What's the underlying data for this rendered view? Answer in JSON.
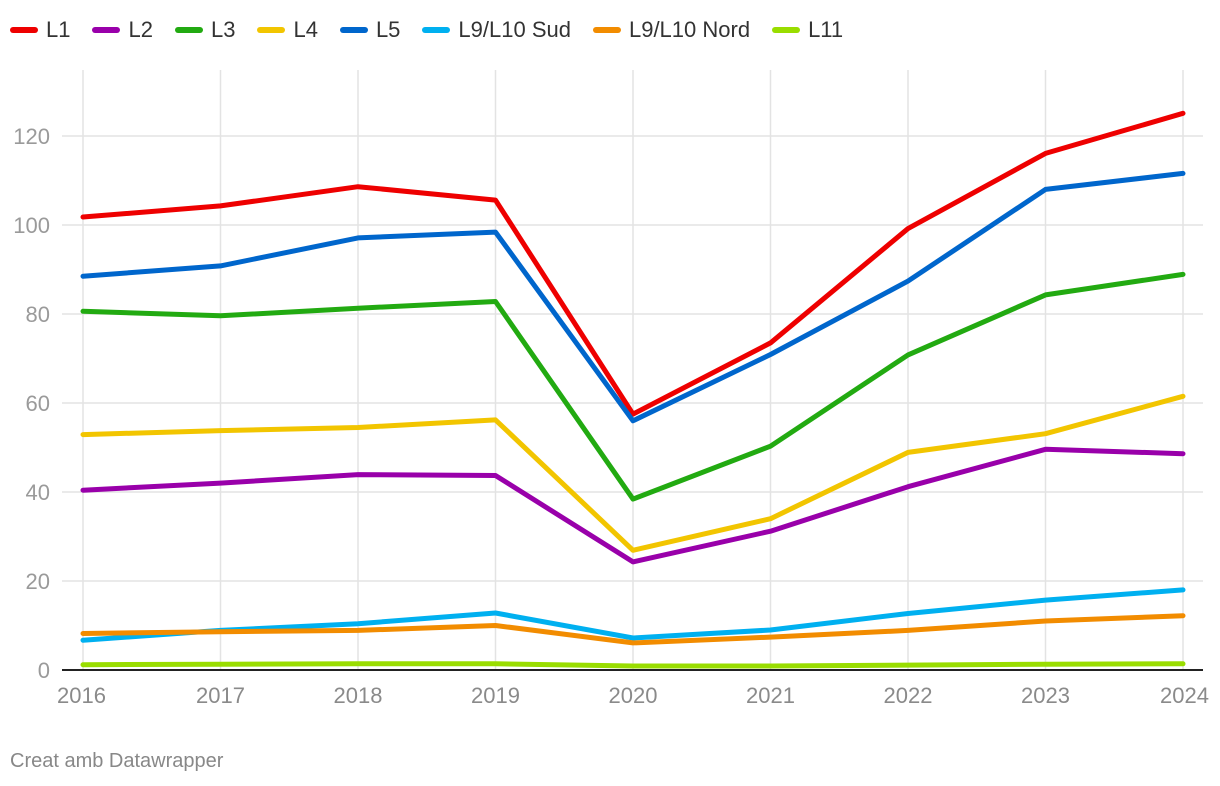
{
  "chart_data": {
    "type": "line",
    "title": "",
    "xlabel": "",
    "ylabel": "",
    "categories": [
      "2016",
      "2017",
      "2018",
      "2019",
      "2020",
      "2021",
      "2022",
      "2023",
      "2024"
    ],
    "ylim": [
      0,
      130
    ],
    "yticks": [
      0,
      20,
      40,
      60,
      80,
      100,
      120
    ],
    "grid": true,
    "legend_position": "top-left",
    "series": [
      {
        "name": "L1",
        "color": "#ee0000",
        "values": [
          101.8,
          104.3,
          108.6,
          105.6,
          57.5,
          73.5,
          99.2,
          116.1,
          125.1
        ]
      },
      {
        "name": "L2",
        "color": "#9900aa",
        "values": [
          40.4,
          42.0,
          43.9,
          43.7,
          24.3,
          31.2,
          41.2,
          49.6,
          48.6
        ]
      },
      {
        "name": "L3",
        "color": "#22aa11",
        "values": [
          80.6,
          79.6,
          81.3,
          82.8,
          38.4,
          50.3,
          70.8,
          84.3,
          88.9
        ]
      },
      {
        "name": "L4",
        "color": "#f2c500",
        "values": [
          52.9,
          53.8,
          54.5,
          56.2,
          26.9,
          34.0,
          48.9,
          53.1,
          61.5
        ]
      },
      {
        "name": "L5",
        "color": "#0066cc",
        "values": [
          88.5,
          90.8,
          97.1,
          98.4,
          56.0,
          70.9,
          87.4,
          108.0,
          111.6
        ]
      },
      {
        "name": "L9/L10 Sud",
        "color": "#00b0f0",
        "values": [
          6.7,
          8.9,
          10.4,
          12.8,
          7.2,
          9.0,
          12.7,
          15.7,
          18.0
        ]
      },
      {
        "name": "L9/L10 Nord",
        "color": "#f28c00",
        "values": [
          8.2,
          8.6,
          8.9,
          10.0,
          6.1,
          7.4,
          8.9,
          11.0,
          12.2
        ]
      },
      {
        "name": "L11",
        "color": "#99dd00",
        "values": [
          1.2,
          1.3,
          1.4,
          1.4,
          0.9,
          0.9,
          1.1,
          1.3,
          1.4
        ]
      }
    ]
  },
  "credit": "Creat amb Datawrapper"
}
